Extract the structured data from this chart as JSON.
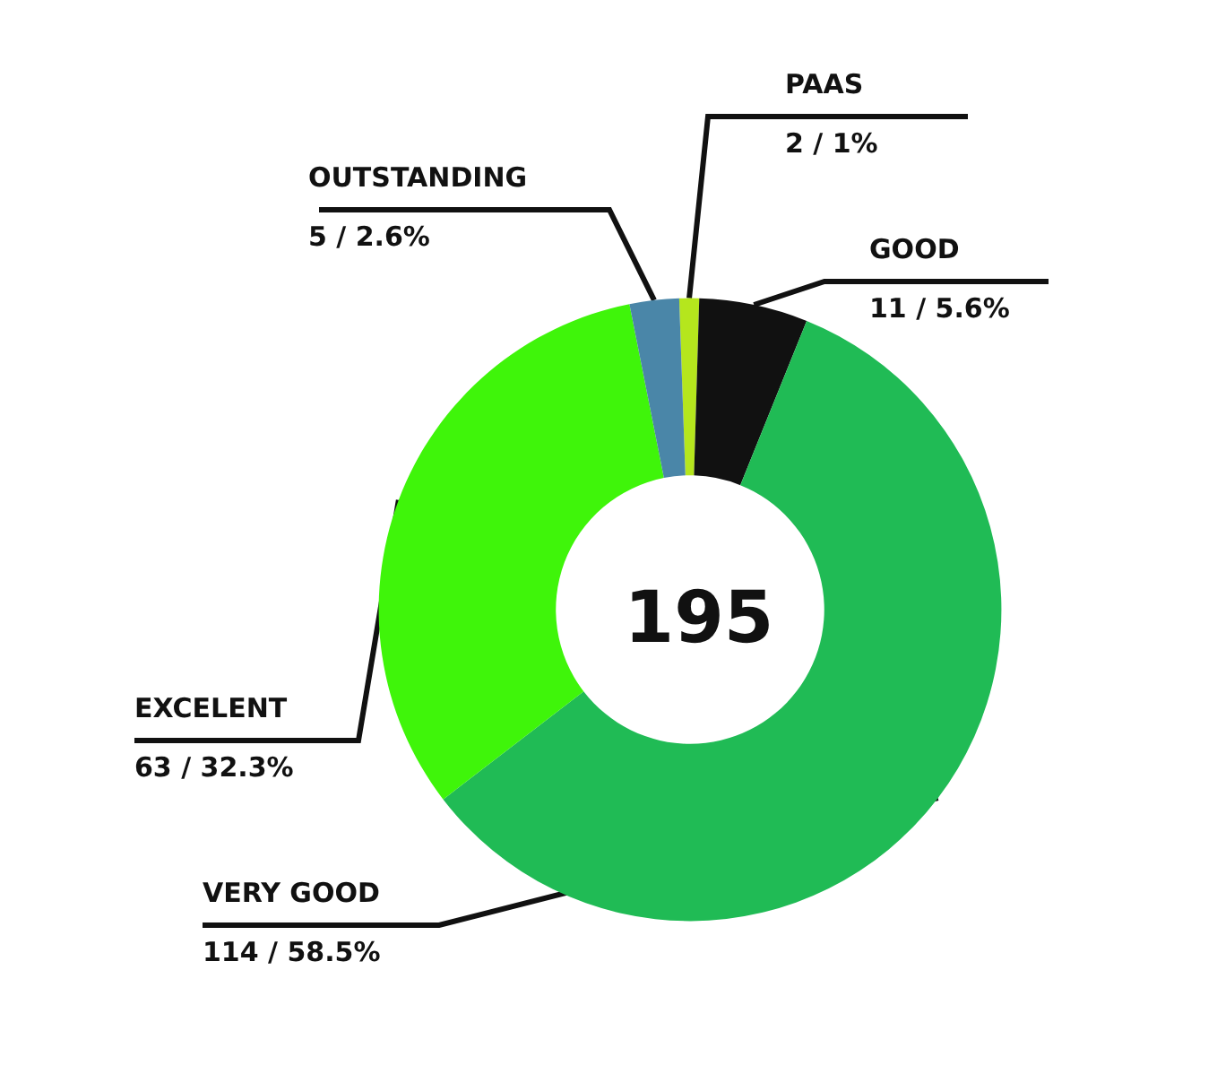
{
  "chart_data": {
    "type": "donut",
    "categories": [
      "PAAS",
      "GOOD",
      "VERY GOOD",
      "EXCELENT",
      "OUTSTANDING"
    ],
    "values": [
      2,
      11,
      114,
      63,
      5
    ],
    "colors": [
      "#b5e61d",
      "#111111",
      "#20bb55",
      "#3ff50a",
      "#4a86a8"
    ],
    "value_labels": [
      "2 / 1%",
      "11 / 5.6%",
      "114 / 58.5%",
      "63 / 32.3%",
      "5 / 2.6%"
    ],
    "annotations": [
      "195"
    ],
    "legend": false
  }
}
